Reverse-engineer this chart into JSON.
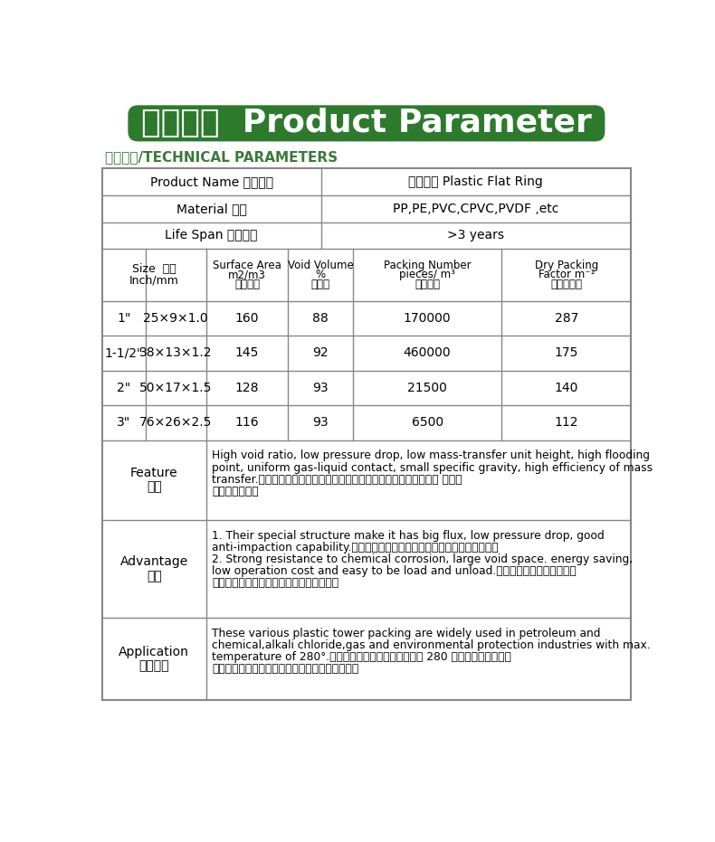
{
  "title_cn": "产品参数",
  "title_en": "Product Parameter",
  "subtitle": "技术参数/TECHNICAL PARAMETERS",
  "title_bg_color": "#2d7a2d",
  "title_text_color": "#ffffff",
  "subtitle_color": "#3a7a3a",
  "table_border_color": "#888888",
  "bg_color": "#ffffff",
  "header_rows": [
    [
      "Product Name 产品名称",
      "塑料扁环 Plastic Flat Ring"
    ],
    [
      "Material 材质",
      "PP,PE,PVC,CPVC,PVDF ,etc"
    ],
    [
      "Life Span 使用寿命",
      ">3 years"
    ]
  ],
  "col_header_line1": [
    "Size  尺寸",
    "Surface Area",
    "Void Volume",
    "Packing Number",
    "Dry Packing"
  ],
  "col_header_line2": [
    "Inch/mm",
    "m2/m3",
    "%",
    "pieces/ m³",
    "Factor m⁻¹"
  ],
  "col_header_line3": [
    "",
    "比表面积",
    "空隙率",
    "堆积个数",
    "干填料因子"
  ],
  "data_rows": [
    [
      "1\"",
      "25×9×1.0",
      "160",
      "88",
      "170000",
      "287"
    ],
    [
      "1-1/2\"",
      "38×13×1.2",
      "145",
      "92",
      "460000",
      "175"
    ],
    [
      "2\"",
      "50×17×1.5",
      "128",
      "93",
      "21500",
      "140"
    ],
    [
      "3\"",
      "76×26×2.5",
      "116",
      "93",
      "6500",
      "112"
    ]
  ],
  "feature_label_en": "Feature",
  "feature_label_cn": "性能",
  "feature_text_line1": "High void ratio, low pressure drop, low mass-transfer unit height, high flooding",
  "feature_text_line2": "point, uniform gas-liquid contact, small specific gravity, high efficiency of mass",
  "feature_text_line3": "transfer.空隙率大、压降低、传质单元高度低、泛点高、气液接触充分 、比重",
  "feature_text_line4": "小、传质效率高",
  "advantage_label_en": "Advantage",
  "advantage_label_cn": "优点",
  "advantage_text_line1": "1. Their special structure make it has big flux, low pressure drop, good",
  "advantage_text_line2": "anti-impaction capability.特殊的结构使其流通量大、压降低、机械强度好。",
  "advantage_text_line3": "2. Strong resistance to chemical corrosion, large void space. energy saving,",
  "advantage_text_line4": "low operation cost and easy to be load and unload.较强的耐腐蚀性能、空隙率",
  "advantage_text_line5": "大、节能环保、成本低、比重轻装卸容易。",
  "application_label_en": "Application",
  "application_label_cn": "应用领域",
  "application_text_line1": "These various plastic tower packing are widely used in petroleum and",
  "application_text_line2": "chemical,alkali chloride,gas and environmental protection industries with max.",
  "application_text_line3": "temperature of 280°.塑料散堆填料的最大使用温度为 280 摄氏度，广泛用于石",
  "application_text_line4": "油，化工，氯碱，煤气，环保等行业的填料塔里。"
}
